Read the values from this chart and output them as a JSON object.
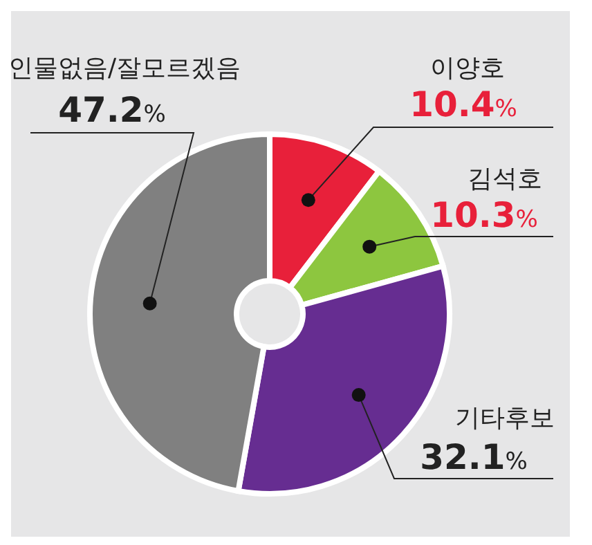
{
  "chart_data": {
    "type": "donut",
    "categories": [
      "이양호",
      "김석호",
      "기타후보",
      "인물없음/잘모르겠음"
    ],
    "values": [
      10.4,
      10.3,
      32.1,
      47.2
    ],
    "colors": [
      "#e8203a",
      "#8dc63f",
      "#662d91",
      "#808080"
    ],
    "value_labels": [
      "10.4%",
      "10.3%",
      "32.1%",
      "47.2%"
    ]
  }
}
